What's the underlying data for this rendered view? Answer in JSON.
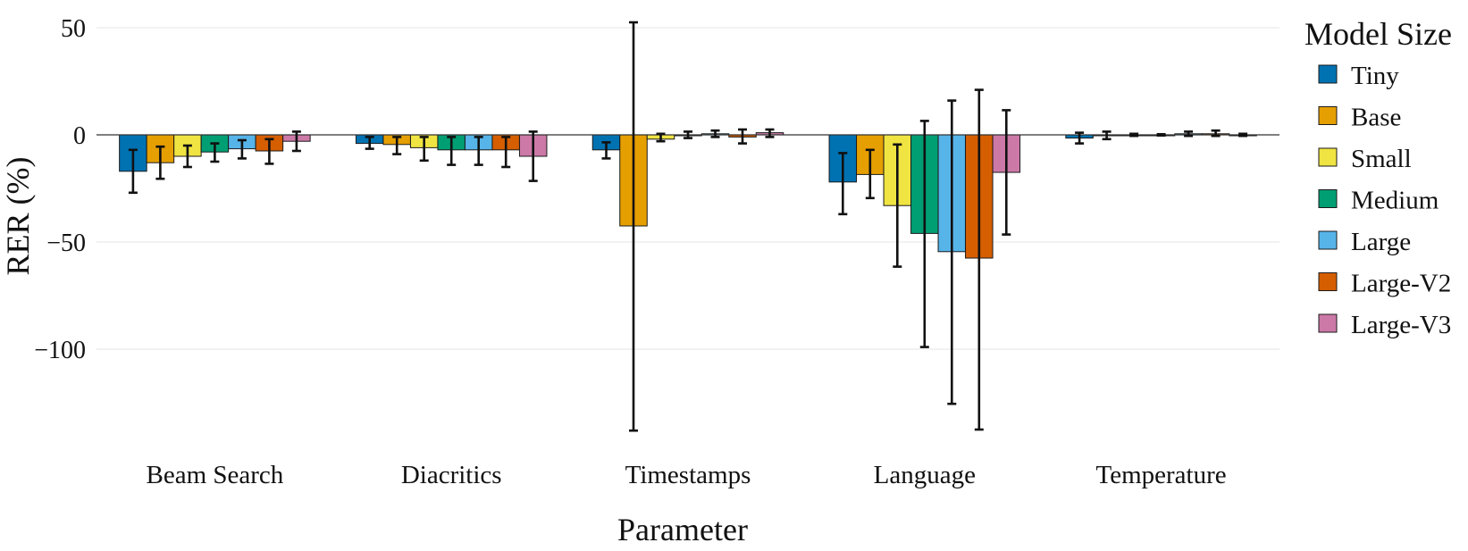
{
  "chart_data": {
    "type": "bar",
    "title": "",
    "xlabel": "Parameter",
    "ylabel": "RER (%)",
    "ylim": [
      -145,
      52
    ],
    "yticks": [
      50,
      0,
      -50,
      -100
    ],
    "ytick_labels": [
      "50",
      "0",
      "−50",
      "−100"
    ],
    "grid": true,
    "legend_title": "Model Size",
    "legend_position": "right",
    "categories": [
      "Beam Search",
      "Diacritics",
      "Timestamps",
      "Language",
      "Temperature"
    ],
    "series": [
      {
        "name": "Tiny",
        "color": "#0072B2",
        "values": [
          -17,
          -4,
          -7,
          -22,
          -1.5
        ],
        "err_low": [
          -27,
          -6.5,
          -11,
          -37,
          -4
        ],
        "err_high": [
          -7,
          -1,
          -3.5,
          -8.5,
          1
        ]
      },
      {
        "name": "Base",
        "color": "#E69F00",
        "values": [
          -13,
          -4.5,
          -42.5,
          -18.5,
          0
        ],
        "err_low": [
          -20.5,
          -9,
          -138,
          -29.5,
          -2
        ],
        "err_high": [
          -5.5,
          -1,
          52.5,
          -7,
          1.5
        ]
      },
      {
        "name": "Small",
        "color": "#F0E442",
        "values": [
          -10,
          -6,
          -2,
          -33,
          0
        ],
        "err_low": [
          -15,
          -12,
          -3,
          -61.5,
          -0.5
        ],
        "err_high": [
          -5,
          -1,
          0.5,
          -4.5,
          0.5
        ]
      },
      {
        "name": "Medium",
        "color": "#009E73",
        "values": [
          -8,
          -7,
          0,
          -46,
          0
        ],
        "err_low": [
          -12.5,
          -14,
          -1.5,
          -99,
          -0.3
        ],
        "err_high": [
          -4,
          -1,
          1.5,
          6.5,
          0.3
        ]
      },
      {
        "name": "Large",
        "color": "#56B4E9",
        "values": [
          -6.5,
          -7,
          0.5,
          -54.5,
          0.5
        ],
        "err_low": [
          -11,
          -14,
          -1,
          -125.5,
          -0.5
        ],
        "err_high": [
          -2.5,
          -1,
          2,
          16,
          1.5
        ]
      },
      {
        "name": "Large-V2",
        "color": "#D55E00",
        "values": [
          -7.5,
          -7,
          -1,
          -57.5,
          0.5
        ],
        "err_low": [
          -13.5,
          -15,
          -4,
          -137.5,
          -0.5
        ],
        "err_high": [
          -2,
          -1,
          2.5,
          21,
          2
        ]
      },
      {
        "name": "Large-V3",
        "color": "#CC79A7",
        "values": [
          -3,
          -10,
          1,
          -17.5,
          0
        ],
        "err_low": [
          -7.5,
          -21.5,
          -1,
          -46.5,
          -0.5
        ],
        "err_high": [
          1.5,
          1.5,
          2.5,
          11.5,
          0.5
        ]
      }
    ]
  }
}
